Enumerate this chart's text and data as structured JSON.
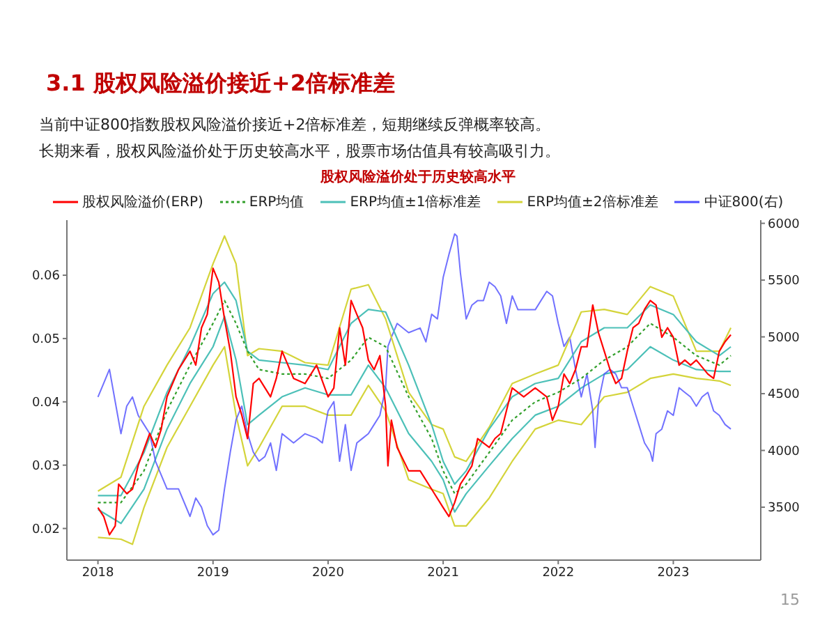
{
  "chart_data": {
    "type": "line",
    "title": "股权风险溢价处于历史较高水平",
    "annotations": [
      "3.1  股权风险溢价接近+2倍标准差",
      "当前中证800指数股权风险溢价接近+2倍标准差，短期继续反弹概率较高。",
      "长期来看，股权风险溢价处于历史较高水平，股票市场估值具有较高吸引力。",
      "15"
    ],
    "xlim": [
      2017.73,
      2023.76
    ],
    "xticks": [
      2018,
      2019,
      2020,
      2021,
      2022,
      2023
    ],
    "ylim": [
      0.015,
      0.0687
    ],
    "yticks": [
      0.02,
      0.03,
      0.04,
      0.05,
      0.06
    ],
    "y2lim": [
      3034,
      6028
    ],
    "y2ticks": [
      3500,
      4000,
      4500,
      5000,
      5500,
      6000
    ],
    "legend": "top",
    "marker": "none",
    "series": [
      {
        "name": "股权风险溢价(ERP)",
        "color": "#ff0000",
        "x": [
          2018.0,
          2018.05,
          2018.1,
          2018.15,
          2018.18,
          2018.25,
          2018.3,
          2018.35,
          2018.45,
          2018.5,
          2018.55,
          2018.6,
          2018.7,
          2018.8,
          2018.85,
          2018.9,
          2018.95,
          2019.0,
          2019.05,
          2019.1,
          2019.15,
          2019.2,
          2019.25,
          2019.3,
          2019.35,
          2019.4,
          2019.5,
          2019.55,
          2019.6,
          2019.7,
          2019.8,
          2019.9,
          2020.0,
          2020.05,
          2020.1,
          2020.15,
          2020.2,
          2020.25,
          2020.3,
          2020.35,
          2020.4,
          2020.45,
          2020.5,
          2020.52,
          2020.55,
          2020.6,
          2020.7,
          2020.8,
          2020.9,
          2021.0,
          2021.05,
          2021.1,
          2021.15,
          2021.2,
          2021.25,
          2021.3,
          2021.4,
          2021.45,
          2021.5,
          2021.55,
          2021.6,
          2021.7,
          2021.8,
          2021.9,
          2021.95,
          2022.0,
          2022.05,
          2022.1,
          2022.15,
          2022.2,
          2022.25,
          2022.3,
          2022.35,
          2022.4,
          2022.45,
          2022.5,
          2022.55,
          2022.6,
          2022.65,
          2022.7,
          2022.75,
          2022.8,
          2022.85,
          2022.9,
          2022.95,
          2023.0,
          2023.05,
          2023.1,
          2023.15,
          2023.2,
          2023.3,
          2023.35,
          2023.4,
          2023.45,
          2023.5
        ],
        "values": [
          0.0233,
          0.0219,
          0.019,
          0.0204,
          0.027,
          0.0255,
          0.0262,
          0.03,
          0.035,
          0.0328,
          0.0357,
          0.0408,
          0.0451,
          0.048,
          0.0458,
          0.0517,
          0.0538,
          0.0611,
          0.0589,
          0.0531,
          0.048,
          0.0408,
          0.0379,
          0.0342,
          0.0429,
          0.0437,
          0.0408,
          0.0437,
          0.048,
          0.0437,
          0.0429,
          0.0458,
          0.0408,
          0.0422,
          0.0517,
          0.0458,
          0.056,
          0.0538,
          0.0517,
          0.0466,
          0.0451,
          0.0473,
          0.0393,
          0.0299,
          0.0371,
          0.0328,
          0.0291,
          0.0291,
          0.0262,
          0.0233,
          0.0219,
          0.0241,
          0.027,
          0.0284,
          0.0299,
          0.0342,
          0.0328,
          0.0342,
          0.035,
          0.0386,
          0.0422,
          0.0408,
          0.0422,
          0.0408,
          0.0371,
          0.0393,
          0.0444,
          0.0429,
          0.0451,
          0.0487,
          0.0487,
          0.0553,
          0.0509,
          0.048,
          0.0451,
          0.0429,
          0.0437,
          0.048,
          0.0517,
          0.0524,
          0.0546,
          0.056,
          0.0553,
          0.0502,
          0.0517,
          0.0502,
          0.0458,
          0.0466,
          0.0458,
          0.0466,
          0.0444,
          0.0437,
          0.048,
          0.0495,
          0.0506
        ]
      },
      {
        "name": "ERP均值",
        "color": "#33a02c",
        "line_style": "dotted",
        "x": [
          2018.0,
          2018.2,
          2018.4,
          2018.6,
          2018.8,
          2019.0,
          2019.1,
          2019.2,
          2019.3,
          2019.4,
          2019.6,
          2019.8,
          2020.0,
          2020.2,
          2020.35,
          2020.5,
          2020.7,
          2020.9,
          2021.0,
          2021.1,
          2021.2,
          2021.4,
          2021.6,
          2021.8,
          2022.0,
          2022.2,
          2022.4,
          2022.6,
          2022.8,
          2023.0,
          2023.2,
          2023.4,
          2023.5
        ],
        "values": [
          0.0241,
          0.0241,
          0.0291,
          0.0386,
          0.0458,
          0.0524,
          0.056,
          0.0524,
          0.048,
          0.0451,
          0.0444,
          0.0444,
          0.0437,
          0.0466,
          0.0502,
          0.0487,
          0.0408,
          0.0342,
          0.0291,
          0.0255,
          0.027,
          0.032,
          0.0371,
          0.04,
          0.0415,
          0.0437,
          0.0466,
          0.0487,
          0.0524,
          0.0502,
          0.0473,
          0.0458,
          0.0473
        ]
      },
      {
        "name": "ERP均值±1倍标准差",
        "color": "#4cc0b8",
        "x": [
          2018.0,
          2018.2,
          2018.4,
          2018.6,
          2018.8,
          2019.0,
          2019.1,
          2019.2,
          2019.3,
          2019.4,
          2019.6,
          2019.8,
          2020.0,
          2020.2,
          2020.35,
          2020.5,
          2020.7,
          2020.9,
          2021.0,
          2021.1,
          2021.2,
          2021.4,
          2021.6,
          2021.8,
          2022.0,
          2022.2,
          2022.4,
          2022.6,
          2022.8,
          2023.0,
          2023.2,
          2023.4,
          2023.5
        ],
        "values": [
          0.0252,
          0.0252,
          0.032,
          0.0415,
          0.0487,
          0.0571,
          0.0589,
          0.056,
          0.048,
          0.0466,
          0.0462,
          0.0458,
          0.0451,
          0.0524,
          0.0546,
          0.0542,
          0.0458,
          0.0364,
          0.0306,
          0.027,
          0.0291,
          0.0357,
          0.0408,
          0.0429,
          0.0437,
          0.0495,
          0.0517,
          0.0517,
          0.0553,
          0.0538,
          0.0495,
          0.0473,
          0.0487
        ]
      },
      {
        "name": "ERP均值±2倍标准差",
        "color": "#d4d43a",
        "x": [
          2018.0,
          2018.2,
          2018.4,
          2018.6,
          2018.8,
          2019.0,
          2019.1,
          2019.2,
          2019.3,
          2019.4,
          2019.6,
          2019.8,
          2020.0,
          2020.2,
          2020.35,
          2020.5,
          2020.7,
          2020.9,
          2021.0,
          2021.1,
          2021.2,
          2021.4,
          2021.6,
          2021.8,
          2022.0,
          2022.2,
          2022.4,
          2022.6,
          2022.8,
          2023.0,
          2023.2,
          2023.4,
          2023.5
        ],
        "values": [
          0.0259,
          0.0281,
          0.0393,
          0.0458,
          0.0517,
          0.0618,
          0.0662,
          0.0618,
          0.0473,
          0.0484,
          0.048,
          0.0462,
          0.0458,
          0.0578,
          0.0585,
          0.0531,
          0.0415,
          0.0364,
          0.0357,
          0.0313,
          0.0306,
          0.036,
          0.0429,
          0.0444,
          0.0458,
          0.0542,
          0.0546,
          0.0538,
          0.0582,
          0.0567,
          0.048,
          0.048,
          0.0517
        ]
      },
      {
        "name": "中证800(右)",
        "color": "#4d4dff",
        "axis": "y2",
        "x": [
          2018.0,
          2018.05,
          2018.1,
          2018.15,
          2018.2,
          2018.25,
          2018.3,
          2018.35,
          2018.4,
          2018.45,
          2018.5,
          2018.55,
          2018.6,
          2018.7,
          2018.8,
          2018.85,
          2018.9,
          2018.95,
          2019.0,
          2019.05,
          2019.1,
          2019.15,
          2019.2,
          2019.25,
          2019.3,
          2019.35,
          2019.4,
          2019.45,
          2019.5,
          2019.55,
          2019.6,
          2019.7,
          2019.8,
          2019.9,
          2019.95,
          2020.0,
          2020.05,
          2020.1,
          2020.15,
          2020.2,
          2020.25,
          2020.3,
          2020.35,
          2020.4,
          2020.45,
          2020.5,
          2020.52,
          2020.55,
          2020.6,
          2020.7,
          2020.8,
          2020.85,
          2020.9,
          2020.95,
          2021.0,
          2021.05,
          2021.1,
          2021.12,
          2021.15,
          2021.2,
          2021.25,
          2021.3,
          2021.35,
          2021.4,
          2021.45,
          2021.5,
          2021.55,
          2021.6,
          2021.65,
          2021.7,
          2021.8,
          2021.9,
          2021.95,
          2022.0,
          2022.05,
          2022.1,
          2022.15,
          2022.2,
          2022.25,
          2022.3,
          2022.32,
          2022.35,
          2022.4,
          2022.45,
          2022.5,
          2022.55,
          2022.6,
          2022.65,
          2022.7,
          2022.75,
          2022.8,
          2022.82,
          2022.85,
          2022.9,
          2022.95,
          2023.0,
          2023.05,
          2023.1,
          2023.15,
          2023.2,
          2023.25,
          2023.3,
          2023.35,
          2023.4,
          2023.45,
          2023.5
        ],
        "values": [
          4471,
          4592,
          4714,
          4430,
          4147,
          4390,
          4471,
          4309,
          4228,
          4147,
          3905,
          3783,
          3662,
          3662,
          3419,
          3581,
          3500,
          3338,
          3257,
          3298,
          3662,
          3985,
          4269,
          4390,
          4147,
          3985,
          3905,
          3945,
          4066,
          3824,
          4147,
          4066,
          4147,
          4107,
          4066,
          4349,
          4430,
          3905,
          4228,
          3824,
          4066,
          4107,
          4147,
          4228,
          4309,
          4552,
          4916,
          4997,
          5118,
          5037,
          5078,
          4956,
          5199,
          5158,
          5523,
          5725,
          5907,
          5887,
          5563,
          5158,
          5280,
          5320,
          5320,
          5482,
          5442,
          5361,
          5118,
          5361,
          5239,
          5239,
          5239,
          5401,
          5361,
          5118,
          4916,
          4997,
          4714,
          4471,
          4673,
          4349,
          4026,
          4430,
          4673,
          4714,
          4673,
          4552,
          4552,
          4390,
          4228,
          4066,
          3985,
          3905,
          4147,
          4188,
          4349,
          4309,
          4552,
          4511,
          4471,
          4390,
          4471,
          4511,
          4349,
          4309,
          4228,
          4188
        ]
      },
      {
        "color": "#4cc0b8",
        "x": [
          2018.0,
          2018.2,
          2018.4,
          2018.6,
          2018.8,
          2019.0,
          2019.1,
          2019.2,
          2019.3,
          2019.4,
          2019.6,
          2019.8,
          2020.0,
          2020.2,
          2020.35,
          2020.5,
          2020.7,
          2020.9,
          2021.0,
          2021.1,
          2021.2,
          2021.4,
          2021.6,
          2021.8,
          2022.0,
          2022.2,
          2022.4,
          2022.6,
          2022.8,
          2023.0,
          2023.2,
          2023.4,
          2023.5
        ],
        "values": [
          0.023,
          0.0208,
          0.0262,
          0.0357,
          0.0429,
          0.0487,
          0.0535,
          0.0466,
          0.0364,
          0.0379,
          0.0408,
          0.0422,
          0.0411,
          0.0411,
          0.0458,
          0.0422,
          0.035,
          0.0306,
          0.0277,
          0.0226,
          0.0255,
          0.0299,
          0.0342,
          0.0379,
          0.0393,
          0.0422,
          0.0444,
          0.0451,
          0.0487,
          0.0466,
          0.0451,
          0.0448,
          0.0448
        ]
      },
      {
        "color": "#d4d43a",
        "x": [
          2018.0,
          2018.2,
          2018.3,
          2018.4,
          2018.6,
          2018.8,
          2019.0,
          2019.1,
          2019.2,
          2019.3,
          2019.4,
          2019.6,
          2019.8,
          2020.0,
          2020.2,
          2020.35,
          2020.5,
          2020.7,
          2020.9,
          2021.0,
          2021.1,
          2021.2,
          2021.4,
          2021.6,
          2021.8,
          2022.0,
          2022.2,
          2022.4,
          2022.6,
          2022.8,
          2023.0,
          2023.2,
          2023.4,
          2023.5
        ],
        "values": [
          0.0186,
          0.0183,
          0.0175,
          0.0233,
          0.0328,
          0.0393,
          0.0458,
          0.0487,
          0.0379,
          0.0299,
          0.0328,
          0.0393,
          0.0393,
          0.0379,
          0.0379,
          0.0426,
          0.0386,
          0.0277,
          0.0262,
          0.0255,
          0.0204,
          0.0204,
          0.0248,
          0.0306,
          0.0357,
          0.0371,
          0.0364,
          0.0408,
          0.0415,
          0.0437,
          0.0444,
          0.0437,
          0.0433,
          0.0426
        ]
      }
    ]
  }
}
